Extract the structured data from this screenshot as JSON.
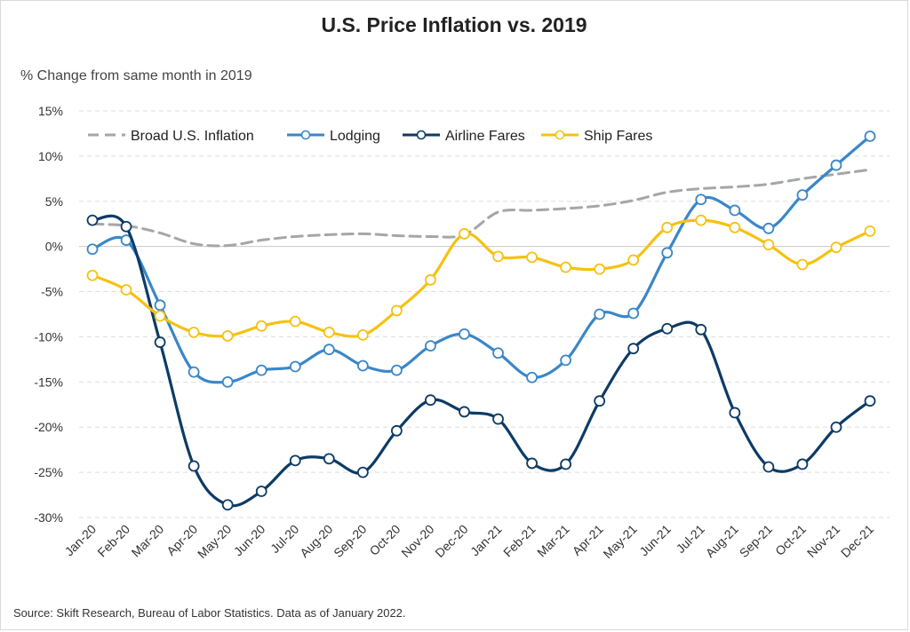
{
  "chart_data": {
    "type": "line",
    "title": "U.S. Price Inflation vs. 2019",
    "subtitle": "% Change from same month in 2019",
    "source": "Source: Skift Research, Bureau of Labor Statistics. Data as of January 2022.",
    "categories": [
      "Jan-20",
      "Feb-20",
      "Mar-20",
      "Apr-20",
      "May-20",
      "Jun-20",
      "Jul-20",
      "Aug-20",
      "Sep-20",
      "Oct-20",
      "Nov-20",
      "Dec-20",
      "Jan-21",
      "Feb-21",
      "Mar-21",
      "Apr-21",
      "May-21",
      "Jun-21",
      "Jul-21",
      "Aug-21",
      "Sep-21",
      "Oct-21",
      "Nov-21",
      "Dec-21"
    ],
    "ylim": [
      -30,
      15
    ],
    "yticks": [
      15,
      10,
      5,
      0,
      -5,
      -10,
      -15,
      -20,
      -25,
      -30
    ],
    "ytick_labels": [
      "15%",
      "10%",
      "5%",
      "0%",
      "-5%",
      "-10%",
      "-15%",
      "-20%",
      "-25%",
      "-30%"
    ],
    "legend_position": "top-left",
    "grid": true,
    "series": [
      {
        "name": "Broad U.S. Inflation",
        "color": "#a6a6a6",
        "style": "dashed",
        "markers": false,
        "values": [
          2.5,
          2.3,
          1.5,
          0.3,
          0.1,
          0.7,
          1.1,
          1.3,
          1.4,
          1.2,
          1.1,
          1.3,
          3.8,
          4.0,
          4.2,
          4.5,
          5.1,
          6.0,
          6.4,
          6.6,
          6.9,
          7.5,
          8.0,
          8.5
        ]
      },
      {
        "name": "Lodging",
        "color": "#3a87c8",
        "style": "solid",
        "markers": true,
        "values": [
          -0.3,
          0.7,
          -6.5,
          -13.9,
          -15.0,
          -13.7,
          -13.3,
          -11.4,
          -13.2,
          -13.7,
          -11.0,
          -9.7,
          -11.8,
          -14.5,
          -12.6,
          -7.5,
          -7.4,
          -0.7,
          5.2,
          4.0,
          2.0,
          5.7,
          9.0,
          12.2
        ]
      },
      {
        "name": "Airline Fares",
        "color": "#0d3b66",
        "style": "solid",
        "markers": true,
        "values": [
          2.9,
          2.2,
          -10.6,
          -24.3,
          -28.6,
          -27.1,
          -23.7,
          -23.5,
          -25.0,
          -20.4,
          -17.0,
          -18.3,
          -19.1,
          -24.0,
          -24.1,
          -17.1,
          -11.3,
          -9.1,
          -9.2,
          -18.4,
          -24.4,
          -24.1,
          -20.0,
          -17.1
        ]
      },
      {
        "name": "Ship Fares",
        "color": "#f5c211",
        "style": "solid",
        "markers": true,
        "values": [
          -3.2,
          -4.8,
          -7.7,
          -9.5,
          -9.9,
          -8.8,
          -8.3,
          -9.5,
          -9.8,
          -7.1,
          -3.7,
          1.4,
          -1.1,
          -1.2,
          -2.3,
          -2.5,
          -1.5,
          2.1,
          2.9,
          2.1,
          0.2,
          -2.0,
          -0.1,
          1.7
        ]
      }
    ]
  }
}
